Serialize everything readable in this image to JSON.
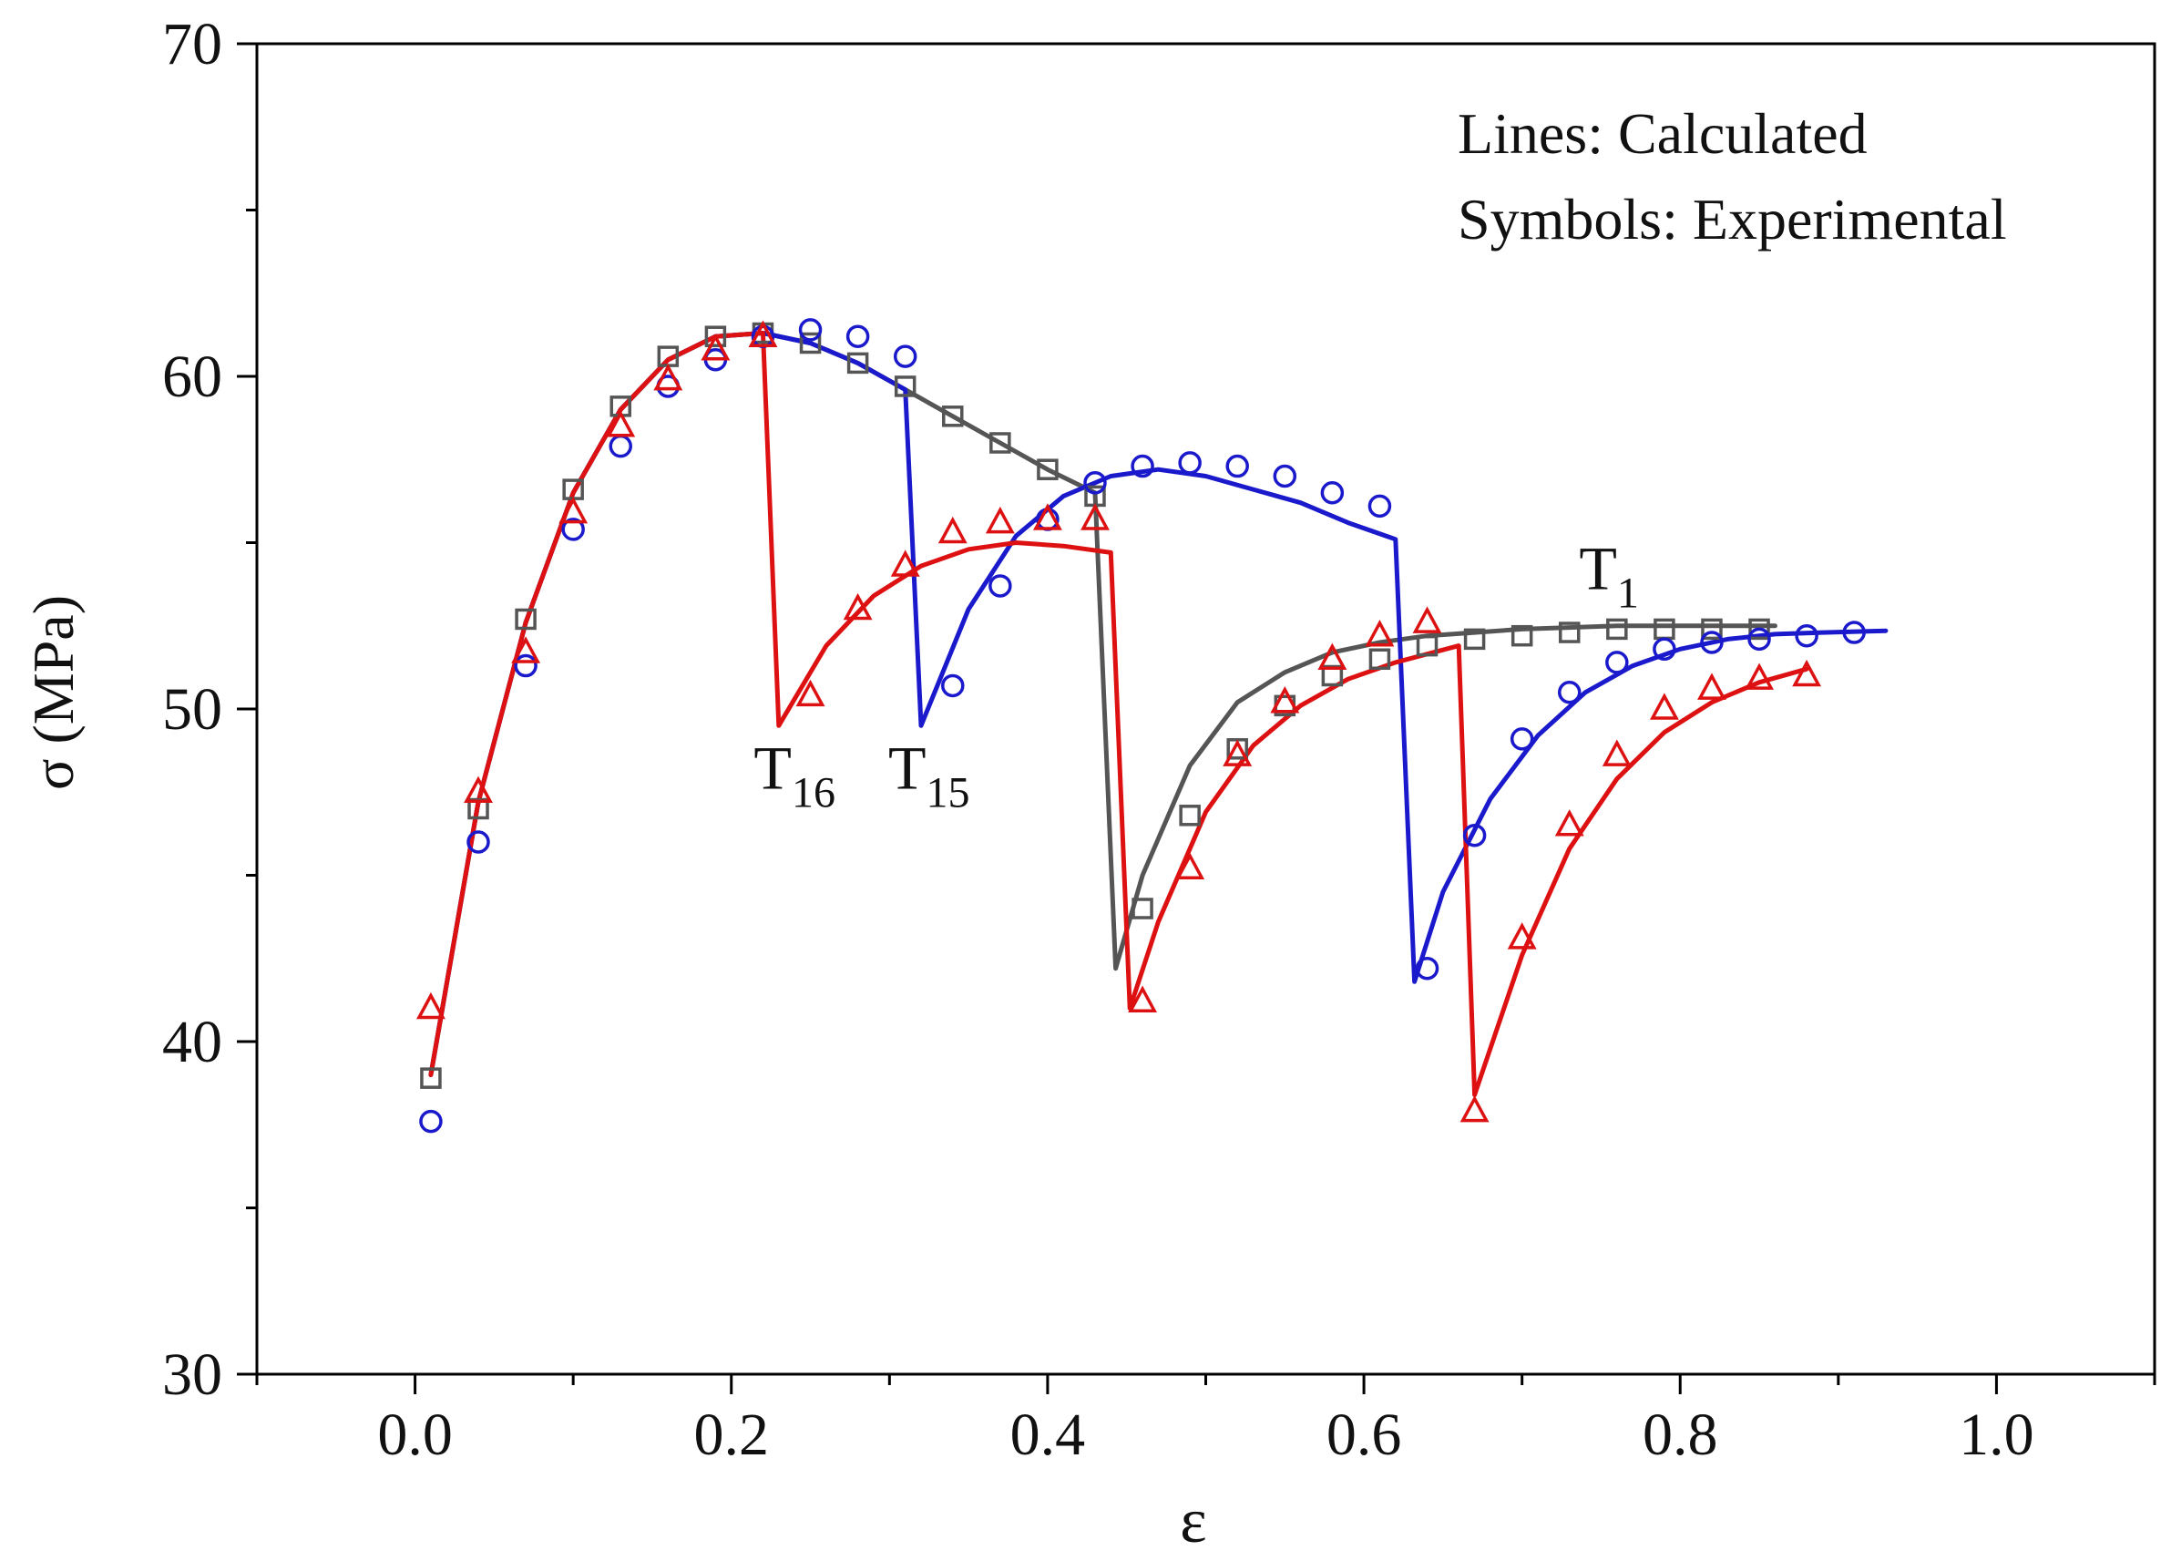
{
  "chart_data": {
    "type": "line",
    "title": "",
    "xlabel": "ε",
    "ylabel": "σ (MPa)",
    "xlim": [
      -0.1,
      1.1
    ],
    "ylim": [
      30,
      70
    ],
    "x_ticks": [
      0.0,
      0.2,
      0.4,
      0.6,
      0.8,
      1.0
    ],
    "x_tick_labels": [
      "0.0",
      "0.2",
      "0.4",
      "0.6",
      "0.8",
      "1.0"
    ],
    "y_ticks": [
      30,
      40,
      50,
      60,
      70
    ],
    "y_tick_labels": [
      "30",
      "40",
      "50",
      "60",
      "70"
    ],
    "grid": false,
    "legend_text": [
      "Lines: Calculated",
      "Symbols: Experimental"
    ],
    "legend_position": "top-right",
    "annotations": [
      {
        "base": "T",
        "sub": "16",
        "x": 0.24,
        "y": 47.6
      },
      {
        "base": "T",
        "sub": "15",
        "x": 0.325,
        "y": 47.6
      },
      {
        "base": "T",
        "sub": "1",
        "x": 0.755,
        "y": 53.6
      }
    ],
    "series": [
      {
        "name": "T1",
        "color": "#555555",
        "marker": "square",
        "calculated": [
          [
            0.01,
            39.0
          ],
          [
            0.04,
            47.2
          ],
          [
            0.07,
            52.6
          ],
          [
            0.1,
            56.5
          ],
          [
            0.13,
            59.0
          ],
          [
            0.16,
            60.5
          ],
          [
            0.19,
            61.2
          ],
          [
            0.22,
            61.3
          ],
          [
            0.25,
            61.0
          ],
          [
            0.28,
            60.4
          ],
          [
            0.31,
            59.6
          ],
          [
            0.34,
            58.8
          ],
          [
            0.37,
            58.0
          ],
          [
            0.4,
            57.2
          ],
          [
            0.43,
            56.5
          ],
          [
            0.443,
            42.2
          ],
          [
            0.46,
            45.0
          ],
          [
            0.49,
            48.3
          ],
          [
            0.52,
            50.2
          ],
          [
            0.55,
            51.1
          ],
          [
            0.58,
            51.7
          ],
          [
            0.61,
            52.0
          ],
          [
            0.64,
            52.2
          ],
          [
            0.67,
            52.3
          ],
          [
            0.7,
            52.4
          ],
          [
            0.73,
            52.45
          ],
          [
            0.76,
            52.5
          ],
          [
            0.79,
            52.5
          ],
          [
            0.82,
            52.5
          ],
          [
            0.85,
            52.5
          ],
          [
            0.86,
            52.5
          ]
        ],
        "experimental": [
          [
            0.01,
            38.9
          ],
          [
            0.04,
            47.0
          ],
          [
            0.07,
            52.7
          ],
          [
            0.1,
            56.6
          ],
          [
            0.13,
            59.1
          ],
          [
            0.16,
            60.6
          ],
          [
            0.19,
            61.2
          ],
          [
            0.22,
            61.3
          ],
          [
            0.25,
            61.0
          ],
          [
            0.28,
            60.4
          ],
          [
            0.31,
            59.7
          ],
          [
            0.34,
            58.8
          ],
          [
            0.37,
            58.0
          ],
          [
            0.4,
            57.2
          ],
          [
            0.43,
            56.4
          ],
          [
            0.46,
            44.0
          ],
          [
            0.49,
            46.8
          ],
          [
            0.52,
            48.8
          ],
          [
            0.55,
            50.1
          ],
          [
            0.58,
            51.0
          ],
          [
            0.61,
            51.5
          ],
          [
            0.64,
            51.9
          ],
          [
            0.67,
            52.1
          ],
          [
            0.7,
            52.2
          ],
          [
            0.73,
            52.3
          ],
          [
            0.76,
            52.4
          ],
          [
            0.79,
            52.4
          ],
          [
            0.82,
            52.4
          ],
          [
            0.85,
            52.4
          ]
        ]
      },
      {
        "name": "T15",
        "color": "#1a1acc",
        "marker": "circle",
        "calculated": [
          [
            0.01,
            39.0
          ],
          [
            0.04,
            47.2
          ],
          [
            0.07,
            52.6
          ],
          [
            0.1,
            56.5
          ],
          [
            0.13,
            59.0
          ],
          [
            0.16,
            60.5
          ],
          [
            0.19,
            61.2
          ],
          [
            0.22,
            61.3
          ],
          [
            0.25,
            61.0
          ],
          [
            0.28,
            60.4
          ],
          [
            0.31,
            59.6
          ],
          [
            0.32,
            49.5
          ],
          [
            0.35,
            53.0
          ],
          [
            0.38,
            55.2
          ],
          [
            0.41,
            56.4
          ],
          [
            0.44,
            57.0
          ],
          [
            0.47,
            57.2
          ],
          [
            0.5,
            57.0
          ],
          [
            0.53,
            56.6
          ],
          [
            0.56,
            56.2
          ],
          [
            0.59,
            55.6
          ],
          [
            0.62,
            55.1
          ],
          [
            0.632,
            41.8
          ],
          [
            0.65,
            44.5
          ],
          [
            0.68,
            47.3
          ],
          [
            0.71,
            49.2
          ],
          [
            0.74,
            50.5
          ],
          [
            0.77,
            51.3
          ],
          [
            0.8,
            51.8
          ],
          [
            0.83,
            52.1
          ],
          [
            0.86,
            52.25
          ],
          [
            0.89,
            52.3
          ],
          [
            0.93,
            52.35
          ]
        ],
        "experimental": [
          [
            0.01,
            37.6
          ],
          [
            0.04,
            46.0
          ],
          [
            0.07,
            51.3
          ],
          [
            0.1,
            55.4
          ],
          [
            0.13,
            57.9
          ],
          [
            0.16,
            59.7
          ],
          [
            0.19,
            60.5
          ],
          [
            0.22,
            61.2
          ],
          [
            0.25,
            61.4
          ],
          [
            0.28,
            61.2
          ],
          [
            0.31,
            60.6
          ],
          [
            0.34,
            50.7
          ],
          [
            0.37,
            53.7
          ],
          [
            0.4,
            55.7
          ],
          [
            0.43,
            56.8
          ],
          [
            0.46,
            57.3
          ],
          [
            0.49,
            57.4
          ],
          [
            0.52,
            57.3
          ],
          [
            0.55,
            57.0
          ],
          [
            0.58,
            56.5
          ],
          [
            0.61,
            56.1
          ],
          [
            0.64,
            42.2
          ],
          [
            0.67,
            46.2
          ],
          [
            0.7,
            49.1
          ],
          [
            0.73,
            50.5
          ],
          [
            0.76,
            51.4
          ],
          [
            0.79,
            51.8
          ],
          [
            0.82,
            52.0
          ],
          [
            0.85,
            52.1
          ],
          [
            0.88,
            52.2
          ],
          [
            0.91,
            52.3
          ]
        ]
      },
      {
        "name": "T16",
        "color": "#dd1111",
        "marker": "triangle",
        "calculated": [
          [
            0.01,
            39.0
          ],
          [
            0.04,
            47.2
          ],
          [
            0.07,
            52.6
          ],
          [
            0.1,
            56.5
          ],
          [
            0.13,
            59.0
          ],
          [
            0.16,
            60.5
          ],
          [
            0.19,
            61.2
          ],
          [
            0.22,
            61.3
          ],
          [
            0.23,
            49.5
          ],
          [
            0.26,
            51.9
          ],
          [
            0.29,
            53.4
          ],
          [
            0.32,
            54.3
          ],
          [
            0.35,
            54.8
          ],
          [
            0.38,
            55.0
          ],
          [
            0.41,
            54.9
          ],
          [
            0.44,
            54.7
          ],
          [
            0.452,
            41.0
          ],
          [
            0.47,
            43.6
          ],
          [
            0.5,
            46.9
          ],
          [
            0.53,
            48.9
          ],
          [
            0.56,
            50.1
          ],
          [
            0.59,
            50.9
          ],
          [
            0.62,
            51.4
          ],
          [
            0.66,
            51.9
          ],
          [
            0.67,
            38.4
          ],
          [
            0.7,
            42.6
          ],
          [
            0.73,
            45.8
          ],
          [
            0.76,
            47.9
          ],
          [
            0.79,
            49.3
          ],
          [
            0.82,
            50.2
          ],
          [
            0.85,
            50.8
          ],
          [
            0.88,
            51.2
          ]
        ],
        "experimental": [
          [
            0.01,
            41.0
          ],
          [
            0.04,
            47.5
          ],
          [
            0.07,
            51.7
          ],
          [
            0.1,
            55.9
          ],
          [
            0.13,
            58.5
          ],
          [
            0.16,
            59.9
          ],
          [
            0.19,
            60.8
          ],
          [
            0.22,
            61.2
          ],
          [
            0.25,
            50.4
          ],
          [
            0.28,
            53.0
          ],
          [
            0.31,
            54.3
          ],
          [
            0.34,
            55.3
          ],
          [
            0.37,
            55.6
          ],
          [
            0.4,
            55.7
          ],
          [
            0.43,
            55.7
          ],
          [
            0.46,
            41.2
          ],
          [
            0.49,
            45.2
          ],
          [
            0.52,
            48.6
          ],
          [
            0.55,
            50.2
          ],
          [
            0.58,
            51.5
          ],
          [
            0.61,
            52.2
          ],
          [
            0.64,
            52.6
          ],
          [
            0.67,
            37.9
          ],
          [
            0.7,
            43.1
          ],
          [
            0.73,
            46.5
          ],
          [
            0.76,
            48.6
          ],
          [
            0.79,
            50.0
          ],
          [
            0.82,
            50.6
          ],
          [
            0.85,
            50.9
          ],
          [
            0.88,
            51.0
          ]
        ]
      }
    ]
  }
}
